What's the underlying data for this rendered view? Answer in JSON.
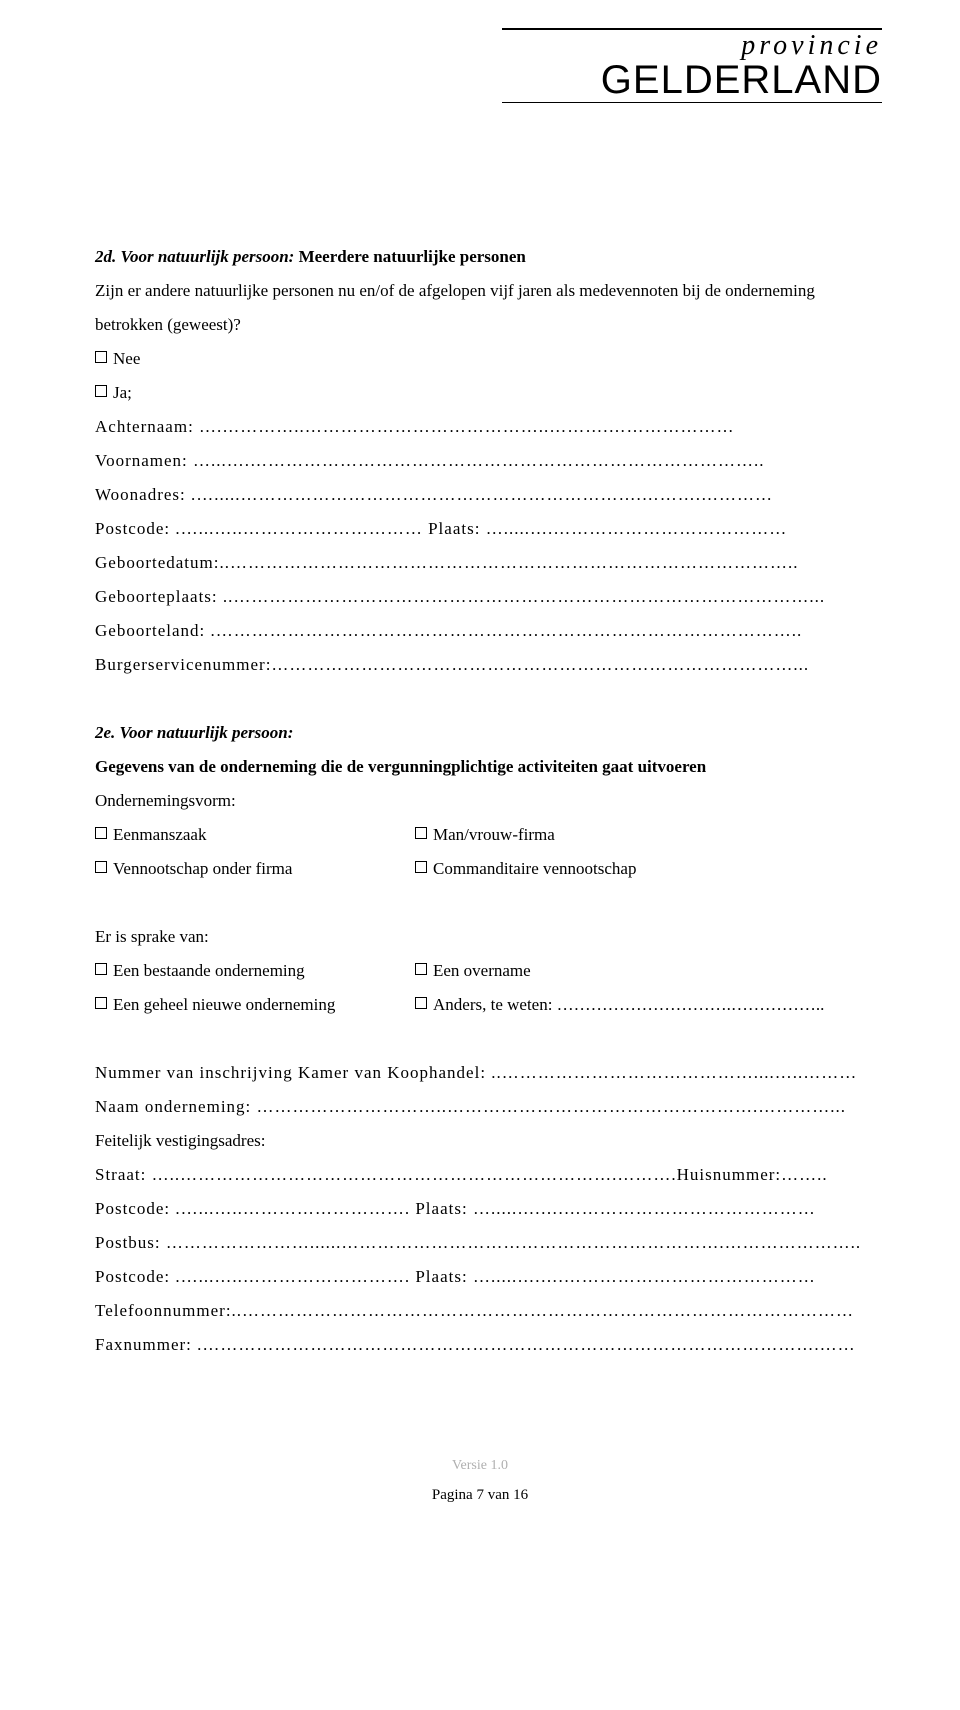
{
  "logo": {
    "provincie": "provincie",
    "gelderland": "GELDERLAND"
  },
  "section2d": {
    "prefix": "2d. Voor natuurlijk persoon:",
    "title_rest": "  Meerdere natuurlijke personen",
    "intro": "Zijn er andere natuurlijke personen nu en/of de afgelopen vijf jaren als medevennoten bij de onderneming betrokken (geweest)?",
    "nee": "Nee",
    "ja": "Ja;",
    "achternaam": "Achternaam: ….…………..…………………………………..……….…………………",
    "voornamen": "Voornamen: …...….…………………………………………………………………………..",
    "woonadres": "Woonadres: .….....………………………………………………………….……….…………",
    "postcode_plaats": "Postcode: .…...…..………………………… Plaats: ….....….…………………………………",
    "geboortedatum": "Geboortedatum:..…………………………………………………………………………………..",
    "geboorteplaats": "Geboorteplaats: ..……………………………………………………………………………………...",
    "geboorteland": "Geboorteland: .……………………………………………………………………………………..",
    "bsn": "Burgerservicenummer:……………………………………………………………………………..."
  },
  "section2e": {
    "prefix": "2e. Voor natuurlijk persoon:",
    "subhead": "Gegevens van de onderneming die de vergunningplichtige activiteiten gaat uitvoeren",
    "ondernemingsvorm_label": "Ondernemingsvorm:",
    "eenmanszaak": "Eenmanszaak",
    "man_vrouw": "Man/vrouw-firma",
    "vof": "Vennootschap onder firma",
    "cv": "Commanditaire vennootschap",
    "sprake_label": "Er is sprake van:",
    "bestaand": "Een bestaande onderneming",
    "overname": "Een overname",
    "nieuw": "Een geheel nieuwe onderneming",
    "anders": "Anders, te weten: ………………………….……………..",
    "kvk": "Nummer van inschrijving Kamer van Koophandel: ..……………………………………....…..………",
    "naam_onderneming": "Naam onderneming: …………………………..…………………………………………….…………...",
    "vestigingsadres_label": "Feitelijk vestigingsadres:",
    "straat": "Straat: …..……………………………………………………………….……….Huisnummer:……..",
    "postcode1": "Postcode: .…...…..………………………. Plaats: ….....….….……………………………………",
    "postbus": "Postbus: ……………………......……………………………………………………….…………………..",
    "postcode2": "Postcode: .…...…..………………………. Plaats: ….....….….……………………………………",
    "telefoon": "Telefoonnummer:..…………………………………………………………………………………………",
    "fax": "Faxnummer: .………………………………………………………………………………………….……"
  },
  "footer": {
    "version": "Versie 1.0",
    "page": "Pagina 7 van 16"
  }
}
